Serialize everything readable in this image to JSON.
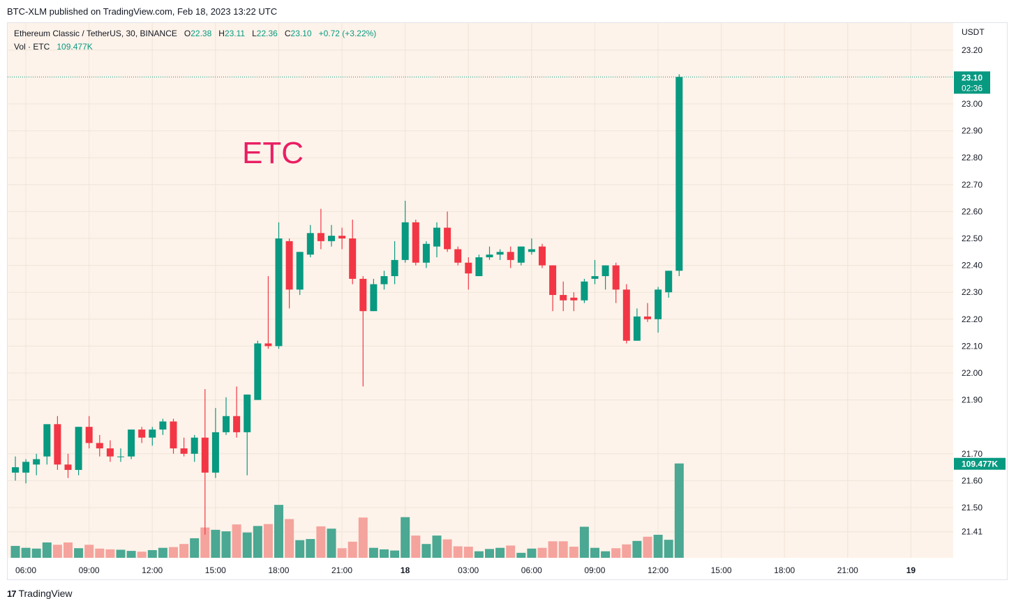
{
  "header": {
    "published": "BTC-XLM published on TradingView.com, Feb 18, 2023 13:22 UTC"
  },
  "legend": {
    "symbol": "Ethereum Classic / TetherUS, 30, BINANCE",
    "o_label": "O",
    "o": "22.38",
    "h_label": "H",
    "h": "23.11",
    "l_label": "L",
    "l": "22.36",
    "c_label": "C",
    "c": "23.10",
    "change": "+0.72 (+3.22%)",
    "vol_label": "Vol · ETC",
    "vol": "109.477K"
  },
  "annotation": {
    "text": "ETC"
  },
  "footer": {
    "logo": "17",
    "brand": "TradingView"
  },
  "colors": {
    "up": "#089981",
    "down": "#f23645",
    "vol_up": "#4aa893",
    "vol_down": "#f5a39d",
    "background": "#fdf3ea",
    "annotation": "#e91e63"
  },
  "chart_data": {
    "type": "candlestick",
    "currency": "USDT",
    "price_axis": {
      "ticks": [
        "23.20",
        "23.00",
        "22.90",
        "22.80",
        "22.70",
        "22.60",
        "22.50",
        "22.40",
        "22.30",
        "22.20",
        "22.10",
        "22.00",
        "21.90",
        "21.70",
        "21.60",
        "21.50",
        "21.41"
      ],
      "range": [
        21.3,
        23.3
      ]
    },
    "last_price_label": "23.10",
    "countdown_label": "02:36",
    "last_volume_label": "109.477K",
    "time_axis": [
      "06:00",
      "09:00",
      "12:00",
      "15:00",
      "18:00",
      "21:00",
      "18",
      "03:00",
      "06:00",
      "09:00",
      "12:00",
      "15:00",
      "18:00",
      "21:00",
      "19"
    ],
    "candles": [
      {
        "o": 21.63,
        "h": 21.69,
        "l": 21.6,
        "c": 21.65
      },
      {
        "o": 21.63,
        "h": 21.68,
        "l": 21.59,
        "c": 21.67
      },
      {
        "o": 21.66,
        "h": 21.7,
        "l": 21.62,
        "c": 21.68
      },
      {
        "o": 21.69,
        "h": 21.8,
        "l": 21.66,
        "c": 21.81
      },
      {
        "o": 21.81,
        "h": 21.84,
        "l": 21.64,
        "c": 21.66
      },
      {
        "o": 21.66,
        "h": 21.7,
        "l": 21.61,
        "c": 21.64
      },
      {
        "o": 21.64,
        "h": 21.8,
        "l": 21.62,
        "c": 21.8
      },
      {
        "o": 21.8,
        "h": 21.84,
        "l": 21.72,
        "c": 21.74
      },
      {
        "o": 21.74,
        "h": 21.77,
        "l": 21.69,
        "c": 21.72
      },
      {
        "o": 21.72,
        "h": 21.75,
        "l": 21.67,
        "c": 21.69
      },
      {
        "o": 21.69,
        "h": 21.72,
        "l": 21.67,
        "c": 21.69
      },
      {
        "o": 21.69,
        "h": 21.79,
        "l": 21.68,
        "c": 21.79
      },
      {
        "o": 21.79,
        "h": 21.8,
        "l": 21.74,
        "c": 21.76
      },
      {
        "o": 21.76,
        "h": 21.8,
        "l": 21.73,
        "c": 21.79
      },
      {
        "o": 21.79,
        "h": 21.83,
        "l": 21.77,
        "c": 21.82
      },
      {
        "o": 21.82,
        "h": 21.83,
        "l": 21.7,
        "c": 21.72
      },
      {
        "o": 21.72,
        "h": 21.76,
        "l": 21.69,
        "c": 21.7
      },
      {
        "o": 21.7,
        "h": 21.77,
        "l": 21.67,
        "c": 21.76
      },
      {
        "o": 21.76,
        "h": 21.94,
        "l": 21.4,
        "c": 21.63
      },
      {
        "o": 21.63,
        "h": 21.87,
        "l": 21.61,
        "c": 21.78
      },
      {
        "o": 21.78,
        "h": 21.91,
        "l": 21.77,
        "c": 21.84
      },
      {
        "o": 21.84,
        "h": 21.95,
        "l": 21.76,
        "c": 21.78
      },
      {
        "o": 21.78,
        "h": 21.92,
        "l": 21.62,
        "c": 21.92
      },
      {
        "o": 21.9,
        "h": 22.12,
        "l": 21.9,
        "c": 22.11
      },
      {
        "o": 22.11,
        "h": 22.36,
        "l": 22.09,
        "c": 22.1
      },
      {
        "o": 22.1,
        "h": 22.56,
        "l": 22.09,
        "c": 22.5
      },
      {
        "o": 22.49,
        "h": 22.5,
        "l": 22.24,
        "c": 22.31
      },
      {
        "o": 22.31,
        "h": 22.45,
        "l": 22.29,
        "c": 22.45
      },
      {
        "o": 22.44,
        "h": 22.55,
        "l": 22.43,
        "c": 22.52
      },
      {
        "o": 22.52,
        "h": 22.61,
        "l": 22.46,
        "c": 22.49
      },
      {
        "o": 22.49,
        "h": 22.55,
        "l": 22.47,
        "c": 22.51
      },
      {
        "o": 22.51,
        "h": 22.54,
        "l": 22.46,
        "c": 22.5
      },
      {
        "o": 22.5,
        "h": 22.57,
        "l": 22.33,
        "c": 22.35
      },
      {
        "o": 22.35,
        "h": 22.36,
        "l": 21.95,
        "c": 22.23
      },
      {
        "o": 22.23,
        "h": 22.35,
        "l": 22.23,
        "c": 22.33
      },
      {
        "o": 22.33,
        "h": 22.38,
        "l": 22.31,
        "c": 22.36
      },
      {
        "o": 22.36,
        "h": 22.49,
        "l": 22.33,
        "c": 22.42
      },
      {
        "o": 22.42,
        "h": 22.64,
        "l": 22.41,
        "c": 22.56
      },
      {
        "o": 22.56,
        "h": 22.57,
        "l": 22.4,
        "c": 22.41
      },
      {
        "o": 22.41,
        "h": 22.49,
        "l": 22.39,
        "c": 22.48
      },
      {
        "o": 22.47,
        "h": 22.56,
        "l": 22.43,
        "c": 22.54
      },
      {
        "o": 22.54,
        "h": 22.6,
        "l": 22.45,
        "c": 22.46
      },
      {
        "o": 22.46,
        "h": 22.47,
        "l": 22.4,
        "c": 22.41
      },
      {
        "o": 22.41,
        "h": 22.43,
        "l": 22.31,
        "c": 22.37
      },
      {
        "o": 22.36,
        "h": 22.44,
        "l": 22.36,
        "c": 22.43
      },
      {
        "o": 22.43,
        "h": 22.47,
        "l": 22.42,
        "c": 22.44
      },
      {
        "o": 22.44,
        "h": 22.46,
        "l": 22.42,
        "c": 22.45
      },
      {
        "o": 22.45,
        "h": 22.47,
        "l": 22.39,
        "c": 22.42
      },
      {
        "o": 22.41,
        "h": 22.47,
        "l": 22.4,
        "c": 22.47
      },
      {
        "o": 22.45,
        "h": 22.5,
        "l": 22.44,
        "c": 22.46
      },
      {
        "o": 22.47,
        "h": 22.48,
        "l": 22.39,
        "c": 22.4
      },
      {
        "o": 22.4,
        "h": 22.4,
        "l": 22.23,
        "c": 22.29
      },
      {
        "o": 22.29,
        "h": 22.34,
        "l": 22.23,
        "c": 22.27
      },
      {
        "o": 22.28,
        "h": 22.3,
        "l": 22.23,
        "c": 22.27
      },
      {
        "o": 22.27,
        "h": 22.35,
        "l": 22.26,
        "c": 22.34
      },
      {
        "o": 22.35,
        "h": 22.42,
        "l": 22.33,
        "c": 22.36
      },
      {
        "o": 22.36,
        "h": 22.4,
        "l": 22.31,
        "c": 22.4
      },
      {
        "o": 22.4,
        "h": 22.41,
        "l": 22.26,
        "c": 22.31
      },
      {
        "o": 22.31,
        "h": 22.33,
        "l": 22.11,
        "c": 22.12
      },
      {
        "o": 22.12,
        "h": 22.24,
        "l": 22.12,
        "c": 22.21
      },
      {
        "o": 22.21,
        "h": 22.26,
        "l": 22.19,
        "c": 22.2
      },
      {
        "o": 22.2,
        "h": 22.32,
        "l": 22.15,
        "c": 22.31
      },
      {
        "o": 22.3,
        "h": 22.38,
        "l": 22.28,
        "c": 22.38
      },
      {
        "o": 22.38,
        "h": 23.11,
        "l": 22.36,
        "c": 23.1
      }
    ],
    "volume_relative": [
      0.31,
      0.26,
      0.24,
      0.4,
      0.34,
      0.4,
      0.25,
      0.34,
      0.24,
      0.22,
      0.21,
      0.18,
      0.16,
      0.2,
      0.26,
      0.28,
      0.36,
      0.51,
      0.79,
      0.73,
      0.69,
      0.87,
      0.66,
      0.83,
      0.88,
      1.38,
      1.01,
      0.46,
      0.49,
      0.82,
      0.76,
      0.25,
      0.42,
      1.05,
      0.26,
      0.22,
      0.19,
      1.06,
      0.58,
      0.36,
      0.58,
      0.48,
      0.3,
      0.29,
      0.17,
      0.23,
      0.26,
      0.32,
      0.13,
      0.24,
      0.26,
      0.43,
      0.43,
      0.29,
      0.81,
      0.26,
      0.17,
      0.25,
      0.35,
      0.44,
      0.55,
      0.6,
      0.47,
      2.46
    ]
  }
}
